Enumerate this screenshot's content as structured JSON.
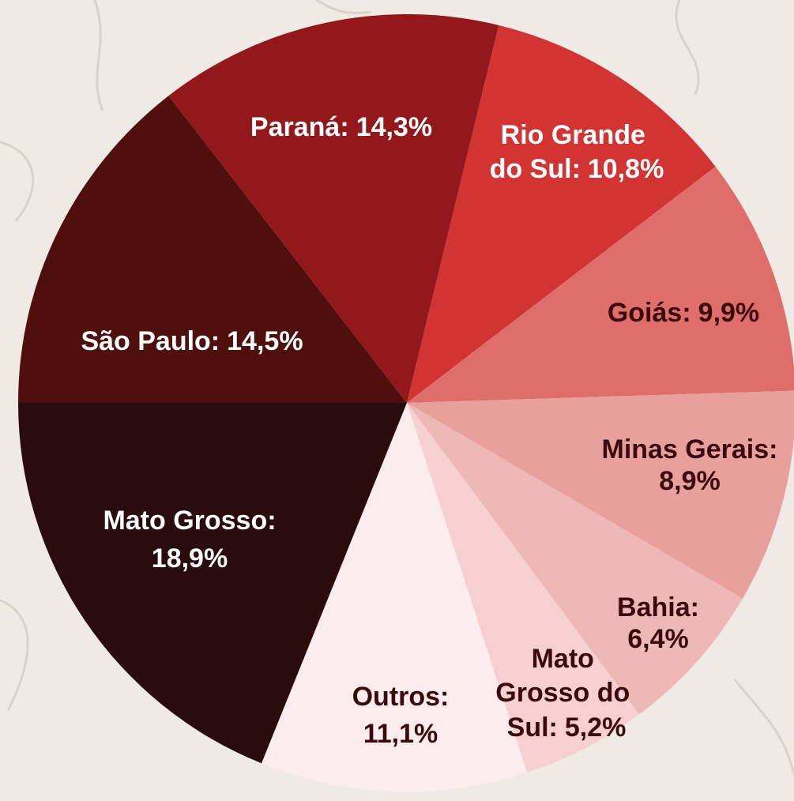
{
  "chart_data": {
    "type": "pie",
    "categories": [
      "São Paulo:",
      "Paraná:",
      "Rio Grande do Sul:",
      "Goiás:",
      "Minas Gerais:",
      "Bahia:",
      "Mato Grosso do Sul:",
      "Outros:",
      "Mato Grosso:"
    ],
    "values": [
      14.5,
      14.3,
      10.8,
      9.9,
      8.9,
      6.4,
      5.2,
      11.1,
      18.9
    ],
    "value_labels": [
      "14,5%",
      "14,3%",
      "10,8%",
      "9,9%",
      "8,9%",
      "6,4%",
      "5,2%",
      "11,1%",
      "18,9%"
    ],
    "colors": [
      "#4e0f0d",
      "#93181c",
      "#d13433",
      "#df6e6a",
      "#e8a09d",
      "#eeb8b6",
      "#f6cfd0",
      "#fcecee",
      "#2b0c0e"
    ]
  }
}
